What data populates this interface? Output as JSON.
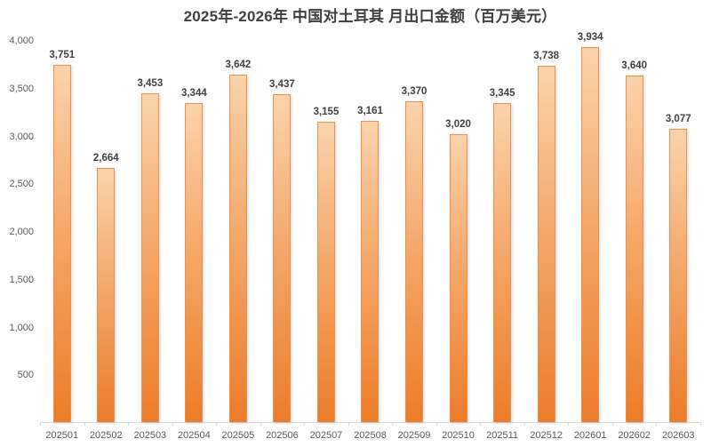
{
  "chart_data": {
    "type": "bar",
    "title": "2025年-2026年 中国对土耳其 月出口金额（百万美元）",
    "categories": [
      "202501",
      "202502",
      "202503",
      "202504",
      "202505",
      "202506",
      "202507",
      "202508",
      "202509",
      "202510",
      "202511",
      "202512",
      "202601",
      "202602",
      "202603"
    ],
    "values": [
      3751,
      2664,
      3453,
      3344,
      3642,
      3437,
      3155,
      3161,
      3370,
      3020,
      3345,
      3738,
      3934,
      3640,
      3077
    ],
    "xlabel": "",
    "ylabel": "",
    "ylim": [
      0,
      4000
    ],
    "yticks": [
      500,
      1000,
      1500,
      2000,
      2500,
      3000,
      3500,
      4000
    ],
    "grid": false,
    "legend": false,
    "data_labels": true,
    "colors": {
      "bar_gradient_top": "#FAD3AC",
      "bar_gradient_bottom": "#EC7C29",
      "bar_border": "#E8914E",
      "value_label": "#404040",
      "tick_label": "#595959",
      "axis_line": "#D9D9D9",
      "title": "#3F3F3F",
      "background": "#FFFFFF"
    }
  }
}
